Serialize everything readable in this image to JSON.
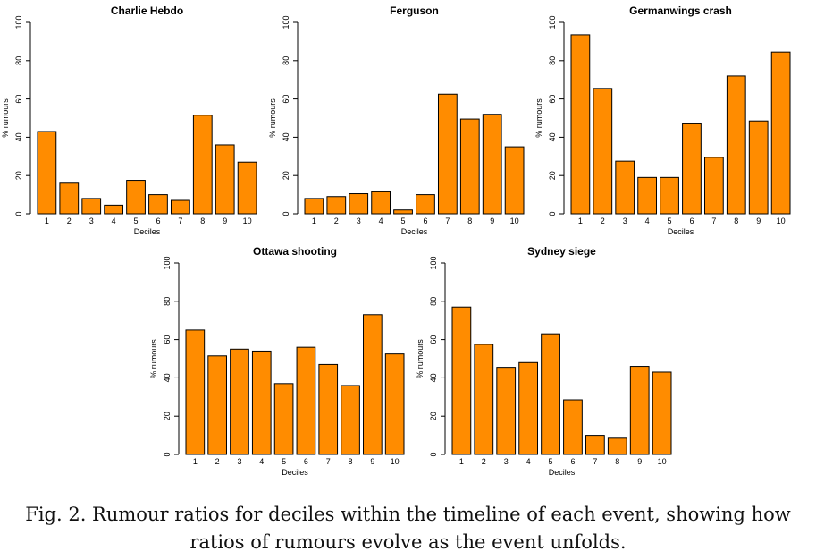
{
  "figure": {
    "caption_line1": "Fig. 2. Rumour ratios for deciles within the timeline of each event, showing how",
    "caption_line2": "ratios of rumours evolve as the event unfolds."
  },
  "style": {
    "bar_fill": "#ff8c00",
    "bar_stroke": "#000000"
  },
  "chart_data": [
    {
      "type": "bar",
      "title": "Charlie Hebdo",
      "xlabel": "Deciles",
      "ylabel": "% rumours",
      "ylim": [
        0,
        100
      ],
      "yticks": [
        0,
        20,
        40,
        60,
        80,
        100
      ],
      "categories": [
        "1",
        "2",
        "3",
        "4",
        "5",
        "6",
        "7",
        "8",
        "9",
        "10"
      ],
      "values": [
        43,
        16,
        8,
        4.5,
        17.5,
        10,
        7,
        51.5,
        36,
        27
      ]
    },
    {
      "type": "bar",
      "title": "Ferguson",
      "xlabel": "Deciles",
      "ylabel": "% rumours",
      "ylim": [
        0,
        100
      ],
      "yticks": [
        0,
        20,
        40,
        60,
        80,
        100
      ],
      "categories": [
        "1",
        "2",
        "3",
        "4",
        "5",
        "6",
        "7",
        "8",
        "9",
        "10"
      ],
      "values": [
        8,
        9,
        10.5,
        11.5,
        2,
        10,
        62.5,
        49.5,
        52,
        35
      ]
    },
    {
      "type": "bar",
      "title": "Germanwings crash",
      "xlabel": "Deciles",
      "ylabel": "% rumours",
      "ylim": [
        0,
        100
      ],
      "yticks": [
        0,
        20,
        40,
        60,
        80,
        100
      ],
      "categories": [
        "1",
        "2",
        "3",
        "4",
        "5",
        "6",
        "7",
        "8",
        "9",
        "10"
      ],
      "values": [
        93.5,
        65.5,
        27.5,
        19,
        19,
        47,
        29.5,
        72,
        48.5,
        84.5
      ]
    },
    {
      "type": "bar",
      "title": "Ottawa shooting",
      "xlabel": "Deciles",
      "ylabel": "% rumours",
      "ylim": [
        0,
        100
      ],
      "yticks": [
        0,
        20,
        40,
        60,
        80,
        100
      ],
      "categories": [
        "1",
        "2",
        "3",
        "4",
        "5",
        "6",
        "7",
        "8",
        "9",
        "10"
      ],
      "values": [
        65,
        51.5,
        55,
        54,
        37,
        56,
        47,
        36,
        73,
        52.5
      ]
    },
    {
      "type": "bar",
      "title": "Sydney siege",
      "xlabel": "Deciles",
      "ylabel": "% rumours",
      "ylim": [
        0,
        100
      ],
      "yticks": [
        0,
        20,
        40,
        60,
        80,
        100
      ],
      "categories": [
        "1",
        "2",
        "3",
        "4",
        "5",
        "6",
        "7",
        "8",
        "9",
        "10"
      ],
      "values": [
        77,
        57.5,
        45.5,
        48,
        63,
        28.5,
        10,
        8.5,
        46,
        43
      ]
    }
  ]
}
